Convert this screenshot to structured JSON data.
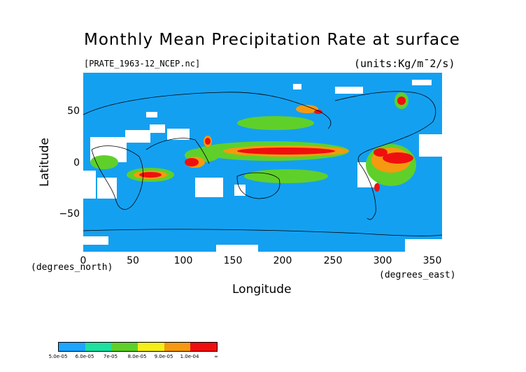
{
  "title": "Monthly Mean Precipitation Rate at surface",
  "file_label": "[PRATE_1963-12_NCEP.nc]",
  "units_label": "(units:Kg/m¯2/s)",
  "xlabel": "Longitude",
  "ylabel": "Latitude",
  "y_caption": "(degrees_north)",
  "x_caption": "(degrees_east)",
  "x_ticks": [
    "0",
    "50",
    "100",
    "150",
    "200",
    "250",
    "300",
    "350"
  ],
  "y_ticks": [
    "50",
    "0",
    "−50"
  ],
  "colorbar": {
    "colors": [
      "#1fa5ff",
      "#1fe0a0",
      "#5fd02a",
      "#f5ee1a",
      "#f59a10",
      "#f00f0f"
    ],
    "labels": [
      "5.0e-05",
      "6.0e-05",
      "7e-05",
      "8.0e-05",
      "9.0e-05",
      "1.0e-04",
      "∞"
    ]
  },
  "map_colors": {
    "ocean": "#14a0f0",
    "missing": "#ffffff",
    "coast": "#000000"
  }
}
